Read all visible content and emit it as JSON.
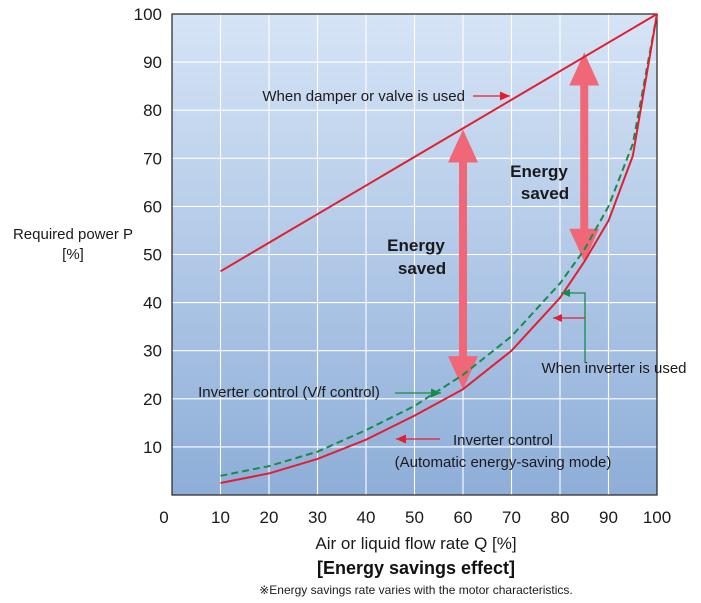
{
  "chart_data": {
    "type": "line",
    "title": "[Energy savings effect]",
    "note": "※Energy savings rate varies with the motor characteristics.",
    "xlabel": "Air or liquid flow rate Q [%]",
    "ylabel_line1": "Required power P",
    "ylabel_line2": "[%]",
    "x_ticks": [
      0,
      10,
      20,
      30,
      40,
      50,
      60,
      70,
      80,
      90,
      100
    ],
    "y_ticks": [
      10,
      20,
      30,
      40,
      50,
      60,
      70,
      80,
      90,
      100
    ],
    "xlim": [
      0,
      100
    ],
    "ylim": [
      0,
      100
    ],
    "grid": true,
    "series": [
      {
        "key": "damper",
        "color": "#e02030",
        "style": "solid",
        "x": [
          10,
          100
        ],
        "y": [
          46.5,
          100
        ]
      },
      {
        "key": "vf",
        "color": "#1a8a4a",
        "style": "dashed",
        "x": [
          10,
          20,
          30,
          40,
          50,
          60,
          70,
          80,
          85,
          90,
          95,
          100
        ],
        "y": [
          4,
          6,
          9,
          13.5,
          18.5,
          25,
          33,
          44,
          51,
          60,
          73,
          100
        ]
      },
      {
        "key": "auto",
        "color": "#e02030",
        "style": "solid",
        "x": [
          10,
          20,
          30,
          40,
          50,
          60,
          70,
          80,
          85,
          90,
          95,
          100
        ],
        "y": [
          2.5,
          4.5,
          7.5,
          11.5,
          16.5,
          22,
          30,
          41,
          48.5,
          57,
          70.5,
          100
        ]
      }
    ],
    "annotations": {
      "damper_label": "When damper or valve is used",
      "energy_saved_1_line1": "Energy",
      "energy_saved_1_line2": "saved",
      "energy_saved_2_line1": "Energy",
      "energy_saved_2_line2": "saved",
      "inverter_used": "When inverter is used",
      "vf_label": "Inverter control (V/f control)",
      "auto_label_line1": "Inverter control",
      "auto_label_line2": "(Automatic energy-saving mode)"
    },
    "energy_saved_arrows": [
      {
        "x": 60,
        "y_from": 22,
        "y_to": 76
      },
      {
        "x": 85,
        "y_from": 48.5,
        "y_to": 92
      }
    ],
    "colors": {
      "plot_top": "#d6e4f6",
      "plot_bottom": "#8eaed8",
      "grid": "#ffffff",
      "damper_line": "#e02030",
      "vf_line": "#1a8a4a",
      "auto_line": "#e02030",
      "saved_arrow": "#f06878"
    }
  }
}
